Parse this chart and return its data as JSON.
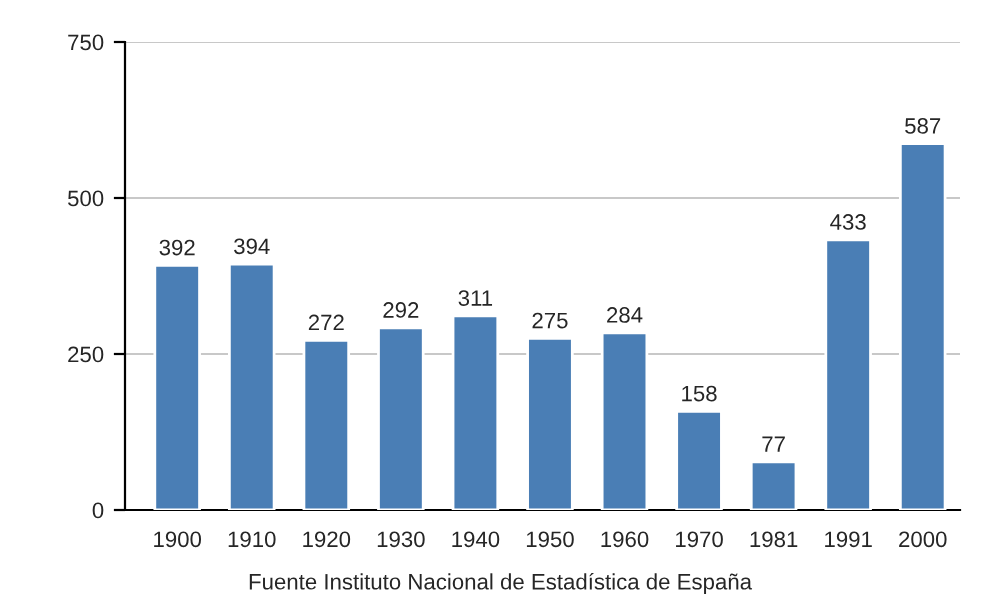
{
  "chart_data": {
    "type": "bar",
    "categories": [
      "1900",
      "1910",
      "1920",
      "1930",
      "1940",
      "1950",
      "1960",
      "1970",
      "1981",
      "1991",
      "2000"
    ],
    "values": [
      392,
      394,
      272,
      292,
      311,
      275,
      284,
      158,
      77,
      433,
      587
    ],
    "color": "#4a7eb5",
    "ylim": [
      0,
      750
    ],
    "yticks": [
      0,
      250,
      500,
      750
    ],
    "grid": "y",
    "data_labels": true,
    "annotations": [
      "Fuente Instituto Nacional de Estadística de España"
    ]
  }
}
